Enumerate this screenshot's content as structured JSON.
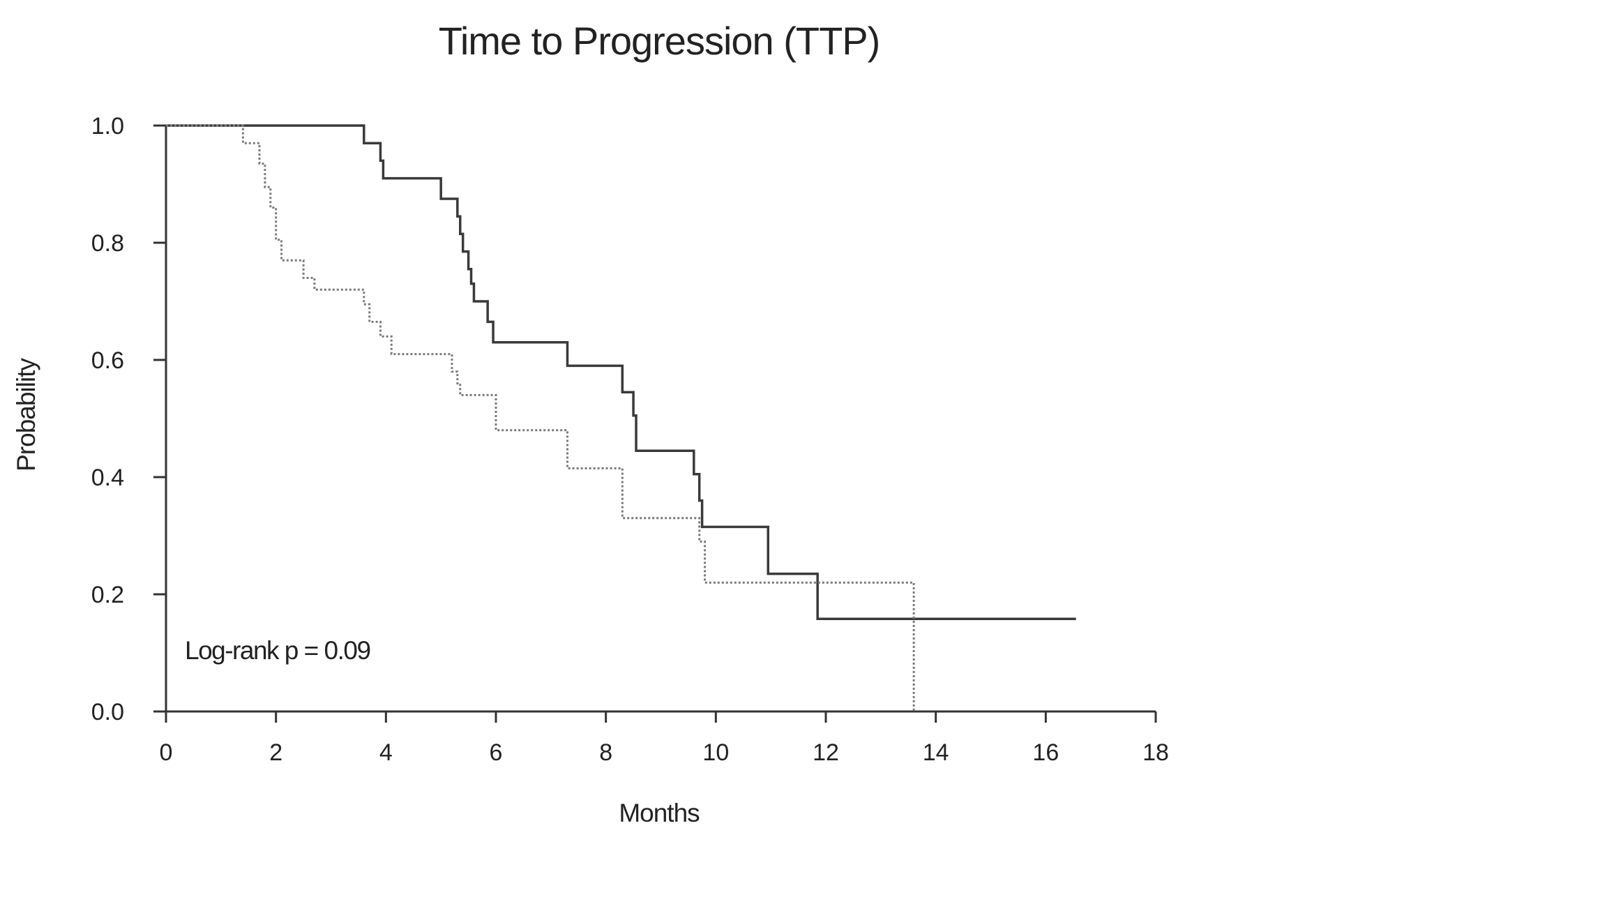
{
  "chart_data": {
    "type": "line",
    "title": "Time to Progression (TTP)",
    "xlabel": "Months",
    "ylabel": "Probability",
    "xlim": [
      0,
      18
    ],
    "ylim": [
      0,
      1
    ],
    "x_ticks": [
      "0",
      "2",
      "4",
      "6",
      "8",
      "10",
      "12",
      "14",
      "16",
      "18"
    ],
    "y_ticks": [
      "0.0",
      "0.2",
      "0.4",
      "0.6",
      "0.8",
      "1.0"
    ],
    "annotation": "Log-rank p = 0.09",
    "grid": false,
    "legend": "none",
    "series": [
      {
        "style": "solid",
        "color": "#3a3a3a",
        "x": [
          0,
          3.6,
          3.9,
          3.95,
          4.0,
          5.0,
          5.3,
          5.35,
          5.4,
          5.5,
          5.55,
          5.6,
          5.85,
          5.95,
          6.0,
          7.3,
          8.3,
          8.5,
          8.55,
          9.6,
          9.7,
          9.75,
          10.95,
          11.85,
          16.55
        ],
        "y": [
          1.0,
          0.97,
          0.94,
          0.91,
          0.91,
          0.875,
          0.845,
          0.815,
          0.785,
          0.755,
          0.73,
          0.7,
          0.665,
          0.63,
          0.63,
          0.59,
          0.545,
          0.505,
          0.445,
          0.405,
          0.36,
          0.315,
          0.235,
          0.158,
          0.158
        ]
      },
      {
        "style": "dotted",
        "color": "#7a7a7a",
        "x": [
          0,
          1.4,
          1.7,
          1.8,
          1.9,
          2.0,
          2.1,
          2.5,
          2.7,
          3.6,
          3.7,
          3.9,
          4.1,
          5.2,
          5.3,
          5.35,
          6.0,
          7.3,
          8.3,
          9.7,
          9.8,
          13.55,
          13.6
        ],
        "y": [
          1.0,
          0.97,
          0.935,
          0.895,
          0.86,
          0.805,
          0.77,
          0.74,
          0.72,
          0.695,
          0.665,
          0.64,
          0.61,
          0.58,
          0.56,
          0.54,
          0.48,
          0.415,
          0.33,
          0.29,
          0.22,
          0.22,
          0.0
        ]
      }
    ]
  }
}
